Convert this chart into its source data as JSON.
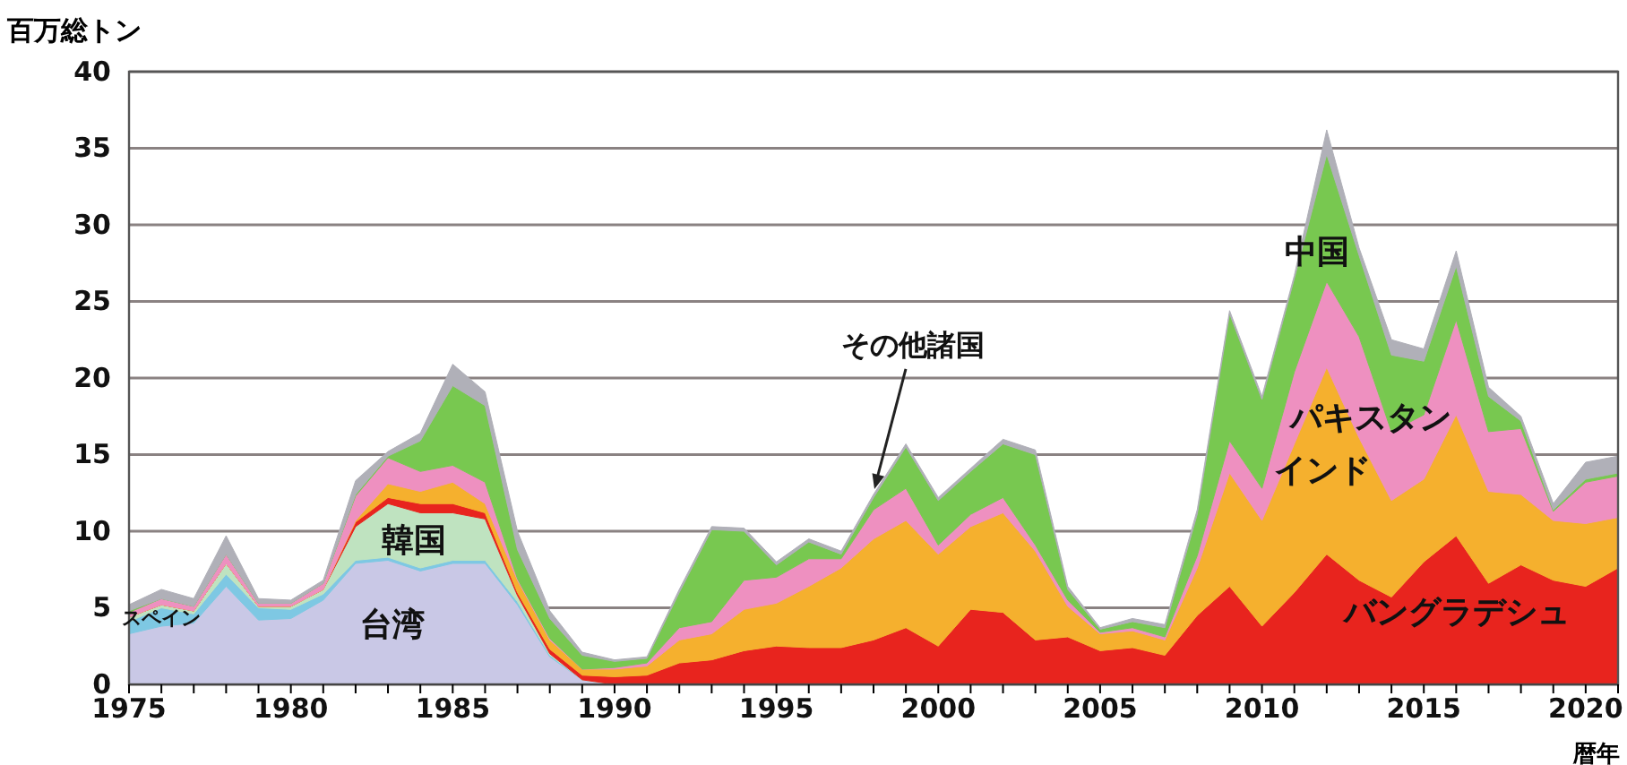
{
  "chart_data": {
    "type": "area",
    "stacked": true,
    "ylabel": "百万総トン",
    "xlabel": "暦年",
    "x": [
      1975,
      1976,
      1977,
      1978,
      1979,
      1980,
      1981,
      1982,
      1983,
      1984,
      1985,
      1986,
      1987,
      1988,
      1989,
      1990,
      1991,
      1992,
      1993,
      1994,
      1995,
      1996,
      1997,
      1998,
      1999,
      2000,
      2001,
      2002,
      2003,
      2004,
      2005,
      2006,
      2007,
      2008,
      2009,
      2010,
      2011,
      2012,
      2013,
      2014,
      2015,
      2016,
      2017,
      2018,
      2019,
      2020,
      2021
    ],
    "series": [
      {
        "name": "台湾",
        "color": "#c9c8e6",
        "values": [
          3.3,
          3.8,
          4.0,
          6.4,
          4.2,
          4.3,
          5.5,
          7.9,
          8.1,
          7.4,
          7.9,
          7.9,
          5.2,
          1.8,
          0.3,
          0,
          0,
          0,
          0,
          0,
          0,
          0,
          0,
          0,
          0,
          0,
          0,
          0,
          0,
          0,
          0,
          0,
          0,
          0,
          0,
          0,
          0,
          0,
          0,
          0,
          0,
          0,
          0,
          0,
          0,
          0,
          0
        ]
      },
      {
        "name": "スペイン",
        "color": "#7ec8e3",
        "values": [
          0.8,
          1.2,
          0.6,
          0.8,
          0.8,
          0.6,
          0.4,
          0.2,
          0.2,
          0.2,
          0.2,
          0.2,
          0.2,
          0.1,
          0,
          0,
          0,
          0,
          0,
          0,
          0,
          0,
          0,
          0,
          0,
          0,
          0,
          0,
          0,
          0,
          0,
          0,
          0,
          0,
          0,
          0,
          0,
          0,
          0,
          0,
          0,
          0,
          0,
          0,
          0,
          0,
          0
        ]
      },
      {
        "name": "韓国",
        "color": "#bfe3c0",
        "values": [
          0.3,
          0.2,
          0.2,
          0.7,
          0.1,
          0.2,
          0.3,
          2.2,
          3.5,
          3.6,
          3.1,
          2.7,
          0.4,
          0.1,
          0,
          0,
          0,
          0,
          0,
          0,
          0,
          0,
          0,
          0,
          0,
          0,
          0,
          0,
          0,
          0,
          0,
          0,
          0,
          0,
          0,
          0,
          0,
          0,
          0,
          0,
          0,
          0,
          0,
          0,
          0,
          0,
          0
        ]
      },
      {
        "name": "バングラデシュ",
        "color": "#e8241e",
        "values": [
          0,
          0,
          0,
          0,
          0,
          0,
          0,
          0.3,
          0.4,
          0.6,
          0.6,
          0.4,
          0.2,
          0.3,
          0.3,
          0.5,
          0.6,
          1.4,
          1.6,
          2.2,
          2.5,
          2.4,
          2.4,
          2.9,
          3.7,
          2.5,
          4.9,
          4.7,
          2.9,
          3.1,
          2.2,
          2.4,
          1.9,
          4.5,
          6.4,
          3.8,
          6.0,
          8.5,
          6.8,
          5.7,
          8.0,
          9.7,
          6.6,
          7.8,
          6.8,
          6.4,
          7.6
        ]
      },
      {
        "name": "インド",
        "color": "#f5b02e",
        "values": [
          0,
          0,
          0,
          0,
          0,
          0,
          0,
          0.1,
          0.9,
          0.8,
          1.4,
          0.6,
          0.8,
          0.6,
          0.4,
          0.5,
          0.6,
          1.5,
          1.7,
          2.7,
          2.8,
          4.0,
          5.2,
          6.6,
          7.0,
          6.0,
          5.4,
          6.5,
          5.8,
          2.0,
          1.1,
          1.1,
          1.0,
          3.1,
          7.4,
          6.9,
          9.7,
          12.2,
          9.3,
          6.3,
          5.4,
          7.9,
          6.0,
          4.6,
          3.9,
          4.1,
          3.3
        ]
      },
      {
        "name": "パキスタン",
        "color": "#ee90c0",
        "values": [
          0.3,
          0.4,
          0.3,
          0.6,
          0.2,
          0.2,
          0.4,
          1.6,
          1.7,
          1.3,
          1.1,
          1.4,
          0.1,
          0.1,
          0,
          0.1,
          0.2,
          0.8,
          0.8,
          1.9,
          1.7,
          1.8,
          0.6,
          1.9,
          2.1,
          0.6,
          0.8,
          1.0,
          0.4,
          0.4,
          0.1,
          0.2,
          0.2,
          0.8,
          2.1,
          2.1,
          4.7,
          5.6,
          6.6,
          4.5,
          4.2,
          6.2,
          3.9,
          4.3,
          0.6,
          2.7,
          2.7
        ]
      },
      {
        "name": "中国",
        "color": "#78c850",
        "values": [
          0.1,
          0,
          0,
          0,
          0,
          0,
          0,
          0.1,
          0.1,
          2.0,
          5.2,
          5.0,
          1.9,
          1.3,
          0.9,
          0.4,
          0.3,
          2.3,
          6.0,
          3.2,
          0.8,
          1.1,
          0.3,
          0.8,
          2.7,
          2.9,
          2.8,
          3.5,
          5.9,
          0.7,
          0.2,
          0.4,
          0.6,
          2.7,
          8.3,
          5.8,
          6.1,
          8.3,
          5.3,
          5.0,
          3.5,
          3.5,
          2.3,
          0.5,
          0.1,
          0.2,
          0.2
        ]
      },
      {
        "name": "その他諸国",
        "color": "#b0b0b8",
        "values": [
          0.4,
          0.6,
          0.5,
          1.2,
          0.3,
          0.2,
          0.2,
          0.9,
          0.3,
          0.5,
          1.4,
          0.9,
          1.2,
          0.5,
          0.2,
          0.1,
          0.1,
          0.2,
          0.2,
          0.2,
          0.2,
          0.2,
          0.2,
          0.2,
          0.2,
          0.2,
          0.2,
          0.3,
          0.3,
          0.2,
          0.1,
          0.2,
          0.2,
          0.3,
          0.2,
          0.2,
          0.2,
          1.6,
          0.5,
          1.0,
          0.8,
          1.0,
          0.6,
          0.3,
          0.4,
          1.1,
          1.1
        ]
      }
    ],
    "xlim": [
      1975,
      2021
    ],
    "xticks": [
      1975,
      {
        "value": 1976,
        "label": null
      },
      {
        "value": 1977,
        "label": null
      },
      {
        "value": 1978,
        "label": null
      },
      {
        "value": 1979,
        "label": null
      },
      1980,
      {
        "value": 1981,
        "label": null
      },
      {
        "value": 1982,
        "label": null
      },
      {
        "value": 1983,
        "label": null
      },
      {
        "value": 1984,
        "label": null
      },
      1985,
      {
        "value": 1986,
        "label": null
      },
      {
        "value": 1987,
        "label": null
      },
      {
        "value": 1988,
        "label": null
      },
      {
        "value": 1989,
        "label": null
      },
      1990,
      {
        "value": 1991,
        "label": null
      },
      {
        "value": 1992,
        "label": null
      },
      {
        "value": 1993,
        "label": null
      },
      {
        "value": 1994,
        "label": null
      },
      1995,
      {
        "value": 1996,
        "label": null
      },
      {
        "value": 1997,
        "label": null
      },
      {
        "value": 1998,
        "label": null
      },
      {
        "value": 1999,
        "label": null
      },
      2000,
      {
        "value": 2001,
        "label": null
      },
      {
        "value": 2002,
        "label": null
      },
      {
        "value": 2003,
        "label": null
      },
      {
        "value": 2004,
        "label": null
      },
      2005,
      {
        "value": 2006,
        "label": null
      },
      {
        "value": 2007,
        "label": null
      },
      {
        "value": 2008,
        "label": null
      },
      {
        "value": 2009,
        "label": null
      },
      2010,
      {
        "value": 2011,
        "label": null
      },
      {
        "value": 2012,
        "label": null
      },
      {
        "value": 2013,
        "label": null
      },
      {
        "value": 2014,
        "label": null
      },
      2015,
      {
        "value": 2016,
        "label": null
      },
      {
        "value": 2017,
        "label": null
      },
      {
        "value": 2018,
        "label": null
      },
      {
        "value": 2019,
        "label": null
      },
      2020,
      {
        "value": 2021,
        "label": null
      }
    ],
    "ylim": [
      0,
      40
    ],
    "yticks": [
      0,
      5,
      10,
      15,
      20,
      25,
      30,
      35,
      40
    ],
    "grid": "y"
  }
}
